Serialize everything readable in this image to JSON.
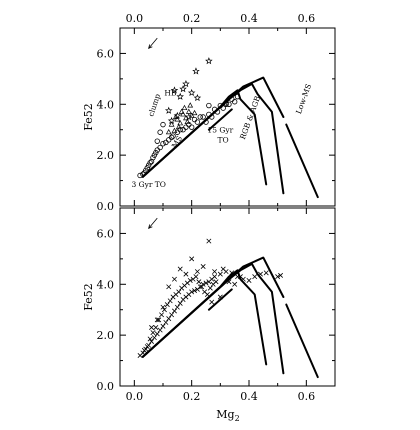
{
  "chart_data": [
    {
      "type": "scatter",
      "panel": "top",
      "xlabel": "",
      "top_axis_ticks": [
        "0.0",
        "0.2",
        "0.4",
        "0.6"
      ],
      "ylabel": "Fe52",
      "xlim": [
        -0.05,
        0.7
      ],
      "ylim": [
        0.0,
        7.0
      ],
      "x_ticks": [
        0.0,
        0.1,
        0.2,
        0.3,
        0.4,
        0.5,
        0.6
      ],
      "y_ticks": [
        0.0,
        1.0,
        2.0,
        3.0,
        4.0,
        5.0,
        6.0,
        7.0
      ],
      "y_tick_labels": [
        "0.0",
        "2.0",
        "4.0",
        "6.0"
      ],
      "arrow": {
        "from": [
          0.08,
          6.6
        ],
        "to": [
          0.05,
          6.2
        ]
      },
      "annotations": [
        {
          "text": "HB",
          "x": 0.105,
          "y": 4.35
        },
        {
          "text": "clump",
          "x": 0.065,
          "y": 3.5,
          "rotate": -72
        },
        {
          "text": "MS",
          "x": 0.145,
          "y": 2.25,
          "rotate": -60
        },
        {
          "text": "15 Gyr",
          "x": 0.255,
          "y": 2.9
        },
        {
          "text": "TO",
          "x": 0.29,
          "y": 2.5
        },
        {
          "text": "RGB & AGB",
          "x": 0.385,
          "y": 2.6,
          "rotate": -70
        },
        {
          "text": "Low-MS",
          "x": 0.58,
          "y": 3.6,
          "rotate": -70
        },
        {
          "text": "3 Gyr TO",
          "x": -0.01,
          "y": 0.75
        }
      ],
      "tracks": [
        {
          "x": [
            0.03,
            0.3,
            0.33,
            0.36,
            0.37,
            0.42,
            0.46
          ],
          "y": [
            1.15,
            3.9,
            4.3,
            4.55,
            4.2,
            3.6,
            0.85
          ]
        },
        {
          "x": [
            0.03,
            0.33,
            0.37,
            0.41,
            0.43,
            0.48,
            0.52
          ],
          "y": [
            1.15,
            4.2,
            4.55,
            4.8,
            4.4,
            3.7,
            0.5
          ]
        },
        {
          "x": [
            0.03,
            0.38,
            0.45,
            0.47,
            0.52
          ],
          "y": [
            1.15,
            4.7,
            5.05,
            4.6,
            3.5
          ]
        },
        {
          "x": [
            0.53,
            0.64
          ],
          "y": [
            3.2,
            0.35
          ]
        },
        {
          "x": [
            0.26,
            0.34
          ],
          "y": [
            3.0,
            3.8
          ]
        }
      ],
      "series": [
        {
          "marker": "circle",
          "x": [
            0.02,
            0.03,
            0.035,
            0.04,
            0.045,
            0.05,
            0.055,
            0.06,
            0.065,
            0.07,
            0.075,
            0.08,
            0.09,
            0.1,
            0.12,
            0.135,
            0.15,
            0.17,
            0.19,
            0.21,
            0.23,
            0.2,
            0.22,
            0.24,
            0.26,
            0.28,
            0.3,
            0.32,
            0.34,
            0.36,
            0.25,
            0.27,
            0.29,
            0.31,
            0.33,
            0.35,
            0.11,
            0.13,
            0.16,
            0.18,
            0.08,
            0.09,
            0.1,
            0.26,
            0.32
          ],
          "y": [
            1.2,
            1.25,
            1.3,
            1.4,
            1.5,
            1.6,
            1.7,
            1.75,
            1.9,
            2.0,
            2.1,
            2.2,
            2.3,
            2.45,
            2.6,
            2.75,
            2.9,
            3.0,
            3.2,
            3.4,
            3.5,
            3.1,
            3.3,
            3.5,
            3.6,
            3.8,
            3.95,
            4.05,
            4.2,
            4.3,
            3.3,
            3.5,
            3.7,
            3.85,
            4.0,
            4.1,
            2.5,
            2.7,
            3.0,
            3.1,
            2.55,
            2.9,
            3.2,
            3.95,
            4.0
          ]
        },
        {
          "marker": "star",
          "x": [
            0.26,
            0.215,
            0.18,
            0.14,
            0.2,
            0.22,
            0.16,
            0.17,
            0.12,
            0.13,
            0.19,
            0.15
          ],
          "y": [
            5.7,
            5.3,
            4.8,
            4.55,
            4.45,
            4.25,
            4.3,
            4.6,
            3.75,
            3.35,
            3.5,
            3.55
          ]
        },
        {
          "marker": "triangle",
          "x": [
            0.13,
            0.15,
            0.17,
            0.19,
            0.16,
            0.18,
            0.14,
            0.2,
            0.12,
            0.165,
            0.175,
            0.185,
            0.145,
            0.155,
            0.195,
            0.21
          ],
          "y": [
            3.2,
            3.4,
            3.6,
            3.7,
            3.25,
            3.45,
            2.95,
            3.55,
            2.9,
            3.7,
            3.85,
            3.3,
            3.5,
            3.1,
            3.95,
            3.65
          ]
        }
      ]
    },
    {
      "type": "scatter",
      "panel": "bottom",
      "xlabel": "Mg",
      "xlabel_sub": "2",
      "x_tick_labels": [
        "0.0",
        "0.2",
        "0.4",
        "0.6"
      ],
      "ylabel": "Fe52",
      "xlim": [
        -0.05,
        0.7
      ],
      "ylim": [
        0.0,
        7.0
      ],
      "x_ticks": [
        0.0,
        0.1,
        0.2,
        0.3,
        0.4,
        0.5,
        0.6
      ],
      "y_ticks": [
        0.0,
        1.0,
        2.0,
        3.0,
        4.0,
        5.0,
        6.0,
        7.0
      ],
      "y_tick_labels": [
        "0.0",
        "2.0",
        "4.0",
        "6.0"
      ],
      "arrow": {
        "from": [
          0.08,
          6.6
        ],
        "to": [
          0.05,
          6.2
        ]
      },
      "tracks": [
        {
          "x": [
            0.03,
            0.3,
            0.33,
            0.36,
            0.37,
            0.42,
            0.46
          ],
          "y": [
            1.15,
            3.9,
            4.3,
            4.55,
            4.2,
            3.6,
            0.85
          ]
        },
        {
          "x": [
            0.03,
            0.33,
            0.37,
            0.41,
            0.43,
            0.48,
            0.52
          ],
          "y": [
            1.15,
            4.2,
            4.55,
            4.8,
            4.4,
            3.7,
            0.5
          ]
        },
        {
          "x": [
            0.03,
            0.38,
            0.45,
            0.47,
            0.52
          ],
          "y": [
            1.15,
            4.7,
            5.05,
            4.6,
            3.5
          ]
        },
        {
          "x": [
            0.53,
            0.64
          ],
          "y": [
            3.2,
            0.35
          ]
        },
        {
          "x": [
            0.26,
            0.34
          ],
          "y": [
            3.0,
            3.8
          ]
        }
      ],
      "series": [
        {
          "marker": "cross",
          "x": [
            0.02,
            0.03,
            0.04,
            0.05,
            0.06,
            0.07,
            0.08,
            0.09,
            0.1,
            0.11,
            0.12,
            0.13,
            0.14,
            0.15,
            0.16,
            0.17,
            0.18,
            0.19,
            0.2,
            0.21,
            0.22,
            0.23,
            0.24,
            0.25,
            0.26,
            0.27,
            0.28,
            0.3,
            0.32,
            0.34,
            0.36,
            0.38,
            0.4,
            0.42,
            0.44,
            0.46,
            0.5,
            0.51,
            0.035,
            0.045,
            0.055,
            0.065,
            0.075,
            0.085,
            0.095,
            0.105,
            0.115,
            0.125,
            0.135,
            0.145,
            0.155,
            0.165,
            0.175,
            0.185,
            0.195,
            0.205,
            0.215,
            0.225,
            0.235,
            0.245,
            0.255,
            0.265,
            0.275,
            0.285,
            0.26,
            0.2,
            0.14,
            0.12,
            0.16,
            0.18,
            0.22,
            0.24,
            0.28,
            0.31,
            0.33,
            0.35,
            0.37,
            0.1,
            0.08,
            0.06,
            0.27,
            0.3
          ],
          "y": [
            1.2,
            1.3,
            1.45,
            1.6,
            1.75,
            1.9,
            2.05,
            2.2,
            2.35,
            2.5,
            2.65,
            2.8,
            2.95,
            3.1,
            3.25,
            3.4,
            3.5,
            3.6,
            3.7,
            3.75,
            3.8,
            3.9,
            4.0,
            4.05,
            4.1,
            4.2,
            4.3,
            4.4,
            4.5,
            4.45,
            4.3,
            4.2,
            4.15,
            4.3,
            4.4,
            4.45,
            4.3,
            4.35,
            1.4,
            1.55,
            1.85,
            2.1,
            2.3,
            2.6,
            2.8,
            3.0,
            3.2,
            3.35,
            3.5,
            3.6,
            3.7,
            3.85,
            3.95,
            4.05,
            4.15,
            4.2,
            4.3,
            4.1,
            3.9,
            3.7,
            3.6,
            3.85,
            4.0,
            4.1,
            5.7,
            5.0,
            4.2,
            3.9,
            4.6,
            4.4,
            4.5,
            4.7,
            4.5,
            4.6,
            4.1,
            4.0,
            4.3,
            3.1,
            2.6,
            2.3,
            3.3,
            3.5
          ]
        }
      ]
    }
  ]
}
